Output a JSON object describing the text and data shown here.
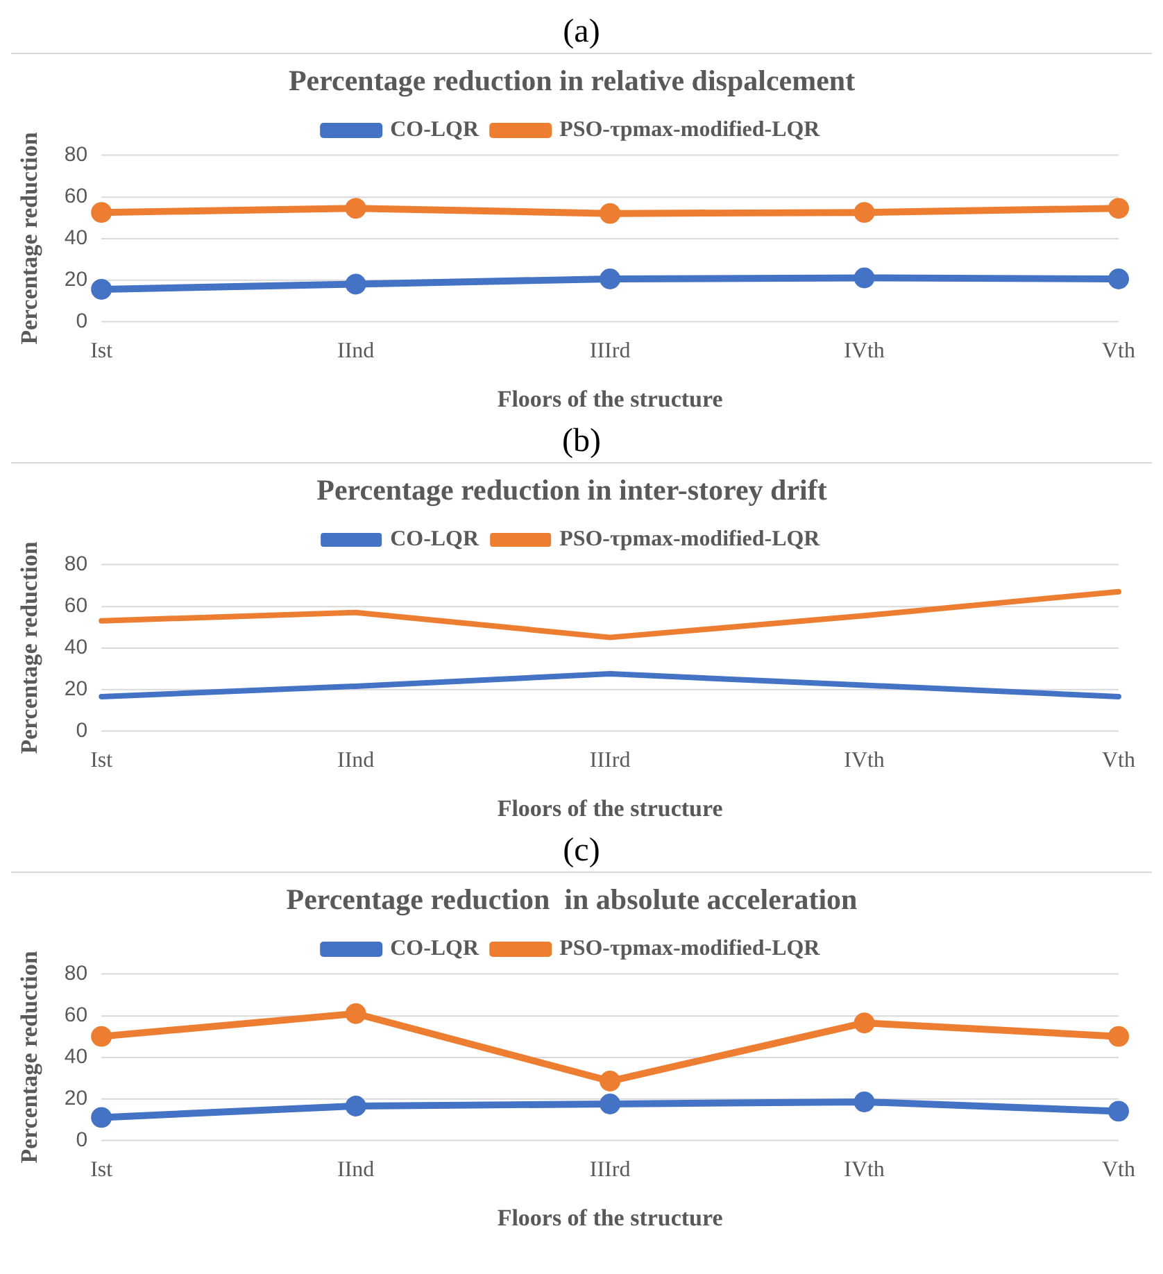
{
  "chart_data": [
    {
      "type": "line",
      "title": "Percentage reduction in relative dispalcement",
      "annotations": [
        "(a)"
      ],
      "xlabel": "Floors of the structure",
      "ylabel": "Percentage reduction",
      "categories": [
        "Ist",
        "IInd",
        "IIIrd",
        "IVth",
        "Vth"
      ],
      "series": [
        {
          "name": "CO-LQR",
          "color": "#4472c4",
          "values": [
            15.5,
            18,
            20.5,
            21,
            20.5
          ]
        },
        {
          "name": "PSO-τpmax-modified-LQR",
          "color": "#ed7d31",
          "values": [
            52.5,
            54.5,
            52,
            52.5,
            54.5
          ]
        }
      ],
      "ylim": [
        0,
        80
      ],
      "yticks": [
        0,
        20,
        40,
        60,
        80
      ],
      "grid": "y",
      "legend": "top",
      "marker": "circle",
      "line_style": "solid"
    },
    {
      "type": "line",
      "title": "Percentage reduction in inter-storey drift",
      "annotations": [
        "(b)"
      ],
      "xlabel": "Floors of the structure",
      "ylabel": "Percentage reduction",
      "categories": [
        "Ist",
        "IInd",
        "IIIrd",
        "IVth",
        "Vth"
      ],
      "series": [
        {
          "name": "CO-LQR",
          "color": "#4472c4",
          "values": [
            16.5,
            21.5,
            27.5,
            22,
            16.5
          ]
        },
        {
          "name": "PSO-τpmax-modified-LQR",
          "color": "#ed7d31",
          "values": [
            53,
            57,
            45,
            55.5,
            67
          ]
        }
      ],
      "ylim": [
        0,
        80
      ],
      "yticks": [
        0,
        20,
        40,
        60,
        80
      ],
      "grid": "y",
      "legend": "top",
      "line_style": "solid"
    },
    {
      "type": "line",
      "title": "Percentage reduction  in absolute acceleration",
      "annotations": [
        "(c)"
      ],
      "xlabel": "Floors of the structure",
      "ylabel": "Percentage reduction",
      "categories": [
        "Ist",
        "IInd",
        "IIIrd",
        "IVth",
        "Vth"
      ],
      "series": [
        {
          "name": "CO-LQR",
          "color": "#4472c4",
          "values": [
            11,
            16.5,
            17.5,
            18.5,
            14
          ]
        },
        {
          "name": "PSO-τpmax-modified-LQR",
          "color": "#ed7d31",
          "values": [
            50,
            61,
            28.5,
            56.5,
            50
          ]
        }
      ],
      "ylim": [
        0,
        80
      ],
      "yticks": [
        0,
        20,
        40,
        60,
        80
      ],
      "grid": "y",
      "legend": "top",
      "marker": "circle",
      "line_style": "solid"
    }
  ]
}
